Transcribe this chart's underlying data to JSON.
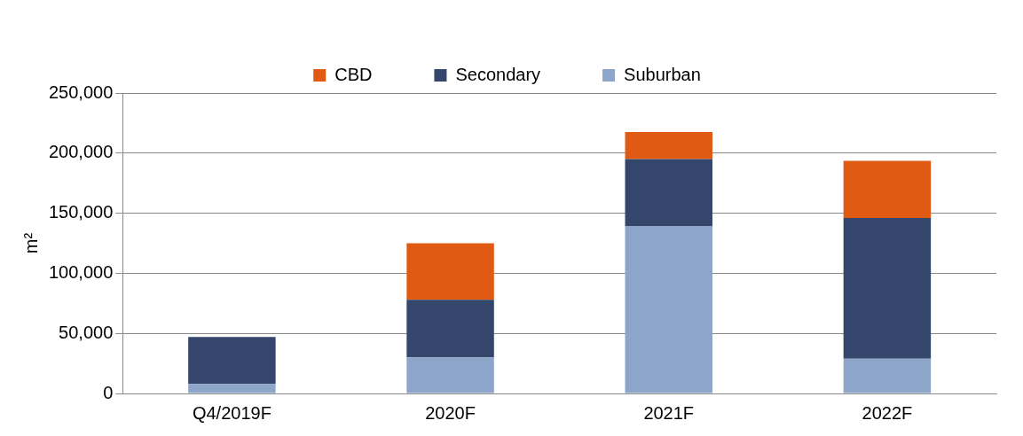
{
  "chart_data": {
    "type": "bar",
    "ylabel": "m²",
    "categories": [
      "Q4/2019F",
      "2020F",
      "2021F",
      "2022F"
    ],
    "stacked": true,
    "series": [
      {
        "name": "Suburban",
        "color": "#8ca5c9",
        "values": [
          8000,
          30000,
          139000,
          29000
        ]
      },
      {
        "name": "Secondary",
        "color": "#34466b",
        "values": [
          39000,
          48000,
          56000,
          117000
        ]
      },
      {
        "name": "CBD",
        "color": "#e05a14",
        "values": [
          0,
          47000,
          22500,
          47500
        ]
      }
    ],
    "ylim": [
      0,
      250000
    ],
    "yticks": [
      0,
      {
        "value": 50000,
        "label": "50,000"
      },
      {
        "value": 100000,
        "label": "100,000"
      },
      {
        "value": 150000,
        "label": "150,000"
      },
      {
        "value": 200000,
        "label": "200,000"
      },
      {
        "value": 250000,
        "label": "250,000"
      }
    ],
    "grid": "y",
    "legend": "top"
  }
}
